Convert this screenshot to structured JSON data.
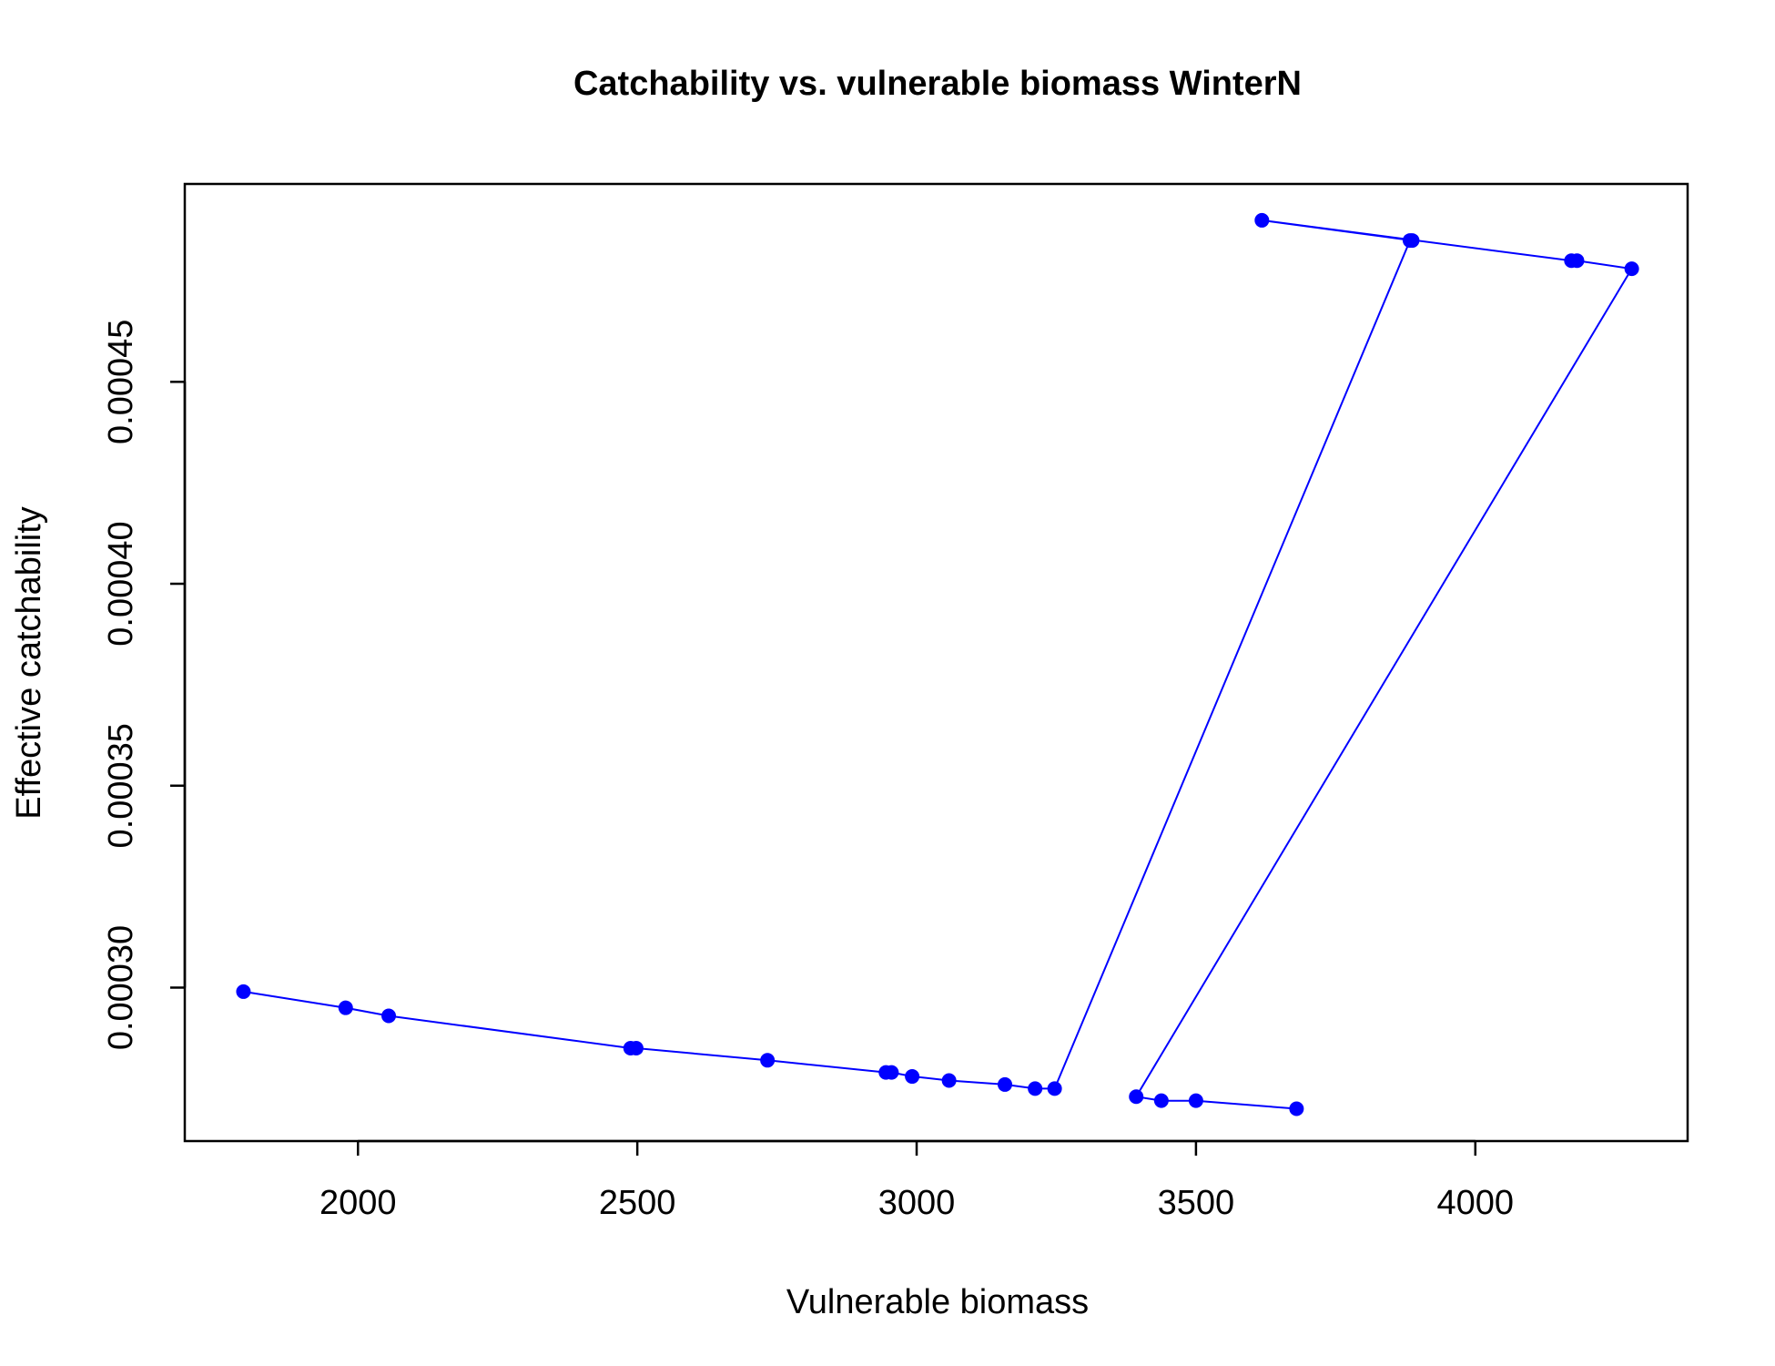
{
  "chart_data": {
    "type": "line",
    "title": "Catchability vs. vulnerable biomass WinterN",
    "xlabel": "Vulnerable biomass",
    "ylabel": "Effective catchability",
    "xlim": [
      1690,
      4380
    ],
    "ylim": [
      0.000262,
      0.000499
    ],
    "x_ticks": [
      2000,
      2500,
      3000,
      3500,
      4000
    ],
    "y_ticks": [
      0.0003,
      0.00035,
      0.0004,
      0.00045
    ],
    "x_tick_labels": [
      "2000",
      "2500",
      "3000",
      "3500",
      "4000"
    ],
    "y_tick_labels": [
      "0.00030",
      "0.00035",
      "0.00040",
      "0.00045"
    ],
    "grid": false,
    "legend": "none",
    "series_color": "#0000FF",
    "series": [
      {
        "x": [
          1795,
          1978,
          2055,
          2488,
          2498,
          2733,
          2945,
          2955,
          2992,
          3058,
          3158,
          3212,
          3247,
          3883,
          3887,
          3618,
          4172,
          4182,
          4280,
          3393,
          3438,
          3500,
          3680
        ],
        "y": [
          0.000299,
          0.000295,
          0.000293,
          0.000285,
          0.000285,
          0.000282,
          0.000279,
          0.000279,
          0.000278,
          0.000277,
          0.000276,
          0.000275,
          0.000275,
          0.000485,
          0.000485,
          0.00049,
          0.00048,
          0.00048,
          0.000478,
          0.000273,
          0.000272,
          0.000272,
          0.00027
        ]
      }
    ]
  }
}
